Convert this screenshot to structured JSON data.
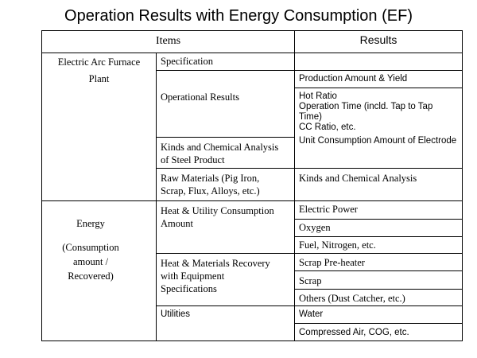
{
  "title": "Operation Results with Energy Consumption (EF)",
  "header": {
    "items": "Items",
    "results": "Results"
  },
  "eaf": {
    "label_line1": "Electric Arc Furnace",
    "label_line2": "Plant",
    "specification": "Specification",
    "operational_results": "Operational Results",
    "production_amount_yield": "Production Amount & Yield",
    "hot_ratio": "Hot Ratio",
    "operation_time_line1": "Operation Time (incld. Tap to Tap",
    "operation_time_line2": "Time)",
    "cc_ratio": "CC Ratio,  etc.",
    "unit_consumption_electrode": "Unit Consumption Amount of Electrode",
    "kinds_chem_steel_line1": "Kinds and Chemical Analysis",
    "kinds_chem_steel_line2": "of Steel Product",
    "raw_materials_line1": "Raw Materials  (Pig Iron,",
    "raw_materials_line2": "Scrap, Flux, Alloys, etc.)",
    "kinds_chem_analysis": "Kinds and Chemical Analysis"
  },
  "energy": {
    "label": "Energy",
    "sub_line1": "(Consumption",
    "sub_line2": "amount /",
    "sub_line3": "Recovered)",
    "heat_utility_line1": "Heat & Utility Consumption",
    "heat_utility_line2": "Amount",
    "electric_power": "Electric Power",
    "oxygen": "Oxygen",
    "fuel_nitrogen": "Fuel, Nitrogen, etc.",
    "heat_recovery_line1": "Heat & Materials Recovery",
    "heat_recovery_line2": "with Equipment",
    "heat_recovery_line3": "Specifications",
    "scrap_preheater": "Scrap Pre-heater",
    "scrap": "Scrap",
    "others": "Others  (Dust Catcher, etc.)",
    "utilities": "Utilities",
    "water": "Water",
    "compressed_air": "Compressed Air, COG, etc."
  }
}
